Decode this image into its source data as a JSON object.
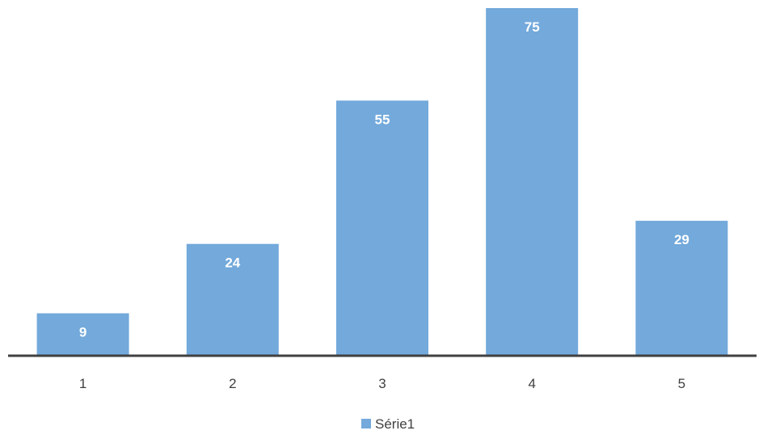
{
  "chart_data": {
    "type": "bar",
    "categories": [
      "1",
      "2",
      "3",
      "4",
      "5"
    ],
    "series": [
      {
        "name": "Série1",
        "values": [
          9,
          24,
          55,
          75,
          29
        ],
        "color": "#73a9db"
      }
    ],
    "data_labels": [
      "9",
      "24",
      "55",
      "75",
      "29"
    ],
    "ylim": [
      0,
      75
    ],
    "grid": false,
    "legend": {
      "position": "bottom",
      "entries": [
        "Série1"
      ]
    },
    "axis_color": "#404040"
  }
}
